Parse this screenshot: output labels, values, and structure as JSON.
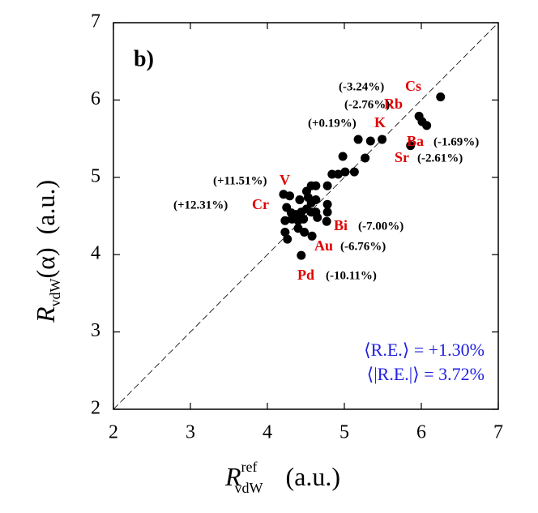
{
  "chart_data": {
    "type": "scatter",
    "panel_label": "b)",
    "x_label": {
      "symbol": "R",
      "superscript": "ref",
      "subscript": "vdW",
      "unit": "(a.u.)"
    },
    "y_label": {
      "symbol": "R",
      "subscript": "vdW",
      "argument": "(α)",
      "unit": "(a.u.)"
    },
    "xlim": [
      2,
      7
    ],
    "ylim": [
      2,
      7
    ],
    "xticks": [
      2,
      3,
      4,
      5,
      6,
      7
    ],
    "yticks": [
      2,
      3,
      4,
      5,
      6,
      7
    ],
    "color": "#000000",
    "series": [
      {
        "x": [
          6.25,
          5.97,
          6.01,
          6.07,
          5.86,
          5.49,
          5.34,
          5.18,
          5.27,
          4.98,
          5.13,
          5.01,
          4.92,
          4.84,
          4.63,
          4.57,
          4.78,
          4.21,
          4.29,
          4.42,
          4.51,
          4.53,
          4.57,
          4.63,
          4.78,
          4.25,
          4.31,
          4.37,
          4.44,
          4.51,
          4.57,
          4.63,
          4.78,
          4.23,
          4.4,
          4.47,
          4.65,
          4.77,
          4.23,
          4.4,
          4.48,
          4.58,
          4.26,
          4.44,
          4.32
        ],
        "y": [
          6.04,
          5.79,
          5.72,
          5.67,
          5.41,
          5.49,
          5.47,
          5.49,
          5.25,
          5.27,
          5.07,
          5.07,
          5.04,
          5.04,
          4.89,
          4.89,
          4.89,
          4.78,
          4.76,
          4.71,
          4.82,
          4.74,
          4.67,
          4.71,
          4.65,
          4.61,
          4.54,
          4.52,
          4.55,
          4.59,
          4.55,
          4.55,
          4.55,
          4.44,
          4.44,
          4.46,
          4.48,
          4.43,
          4.29,
          4.34,
          4.29,
          4.24,
          4.2,
          3.99,
          4.46
        ]
      }
    ],
    "annotations": [
      {
        "element": "Cs",
        "error": "(-3.24%)"
      },
      {
        "element": "Rb",
        "error": "(-2.76%)"
      },
      {
        "element": "K",
        "error": "(+0.19%)"
      },
      {
        "element": "Ba",
        "error": "(-1.69%)"
      },
      {
        "element": "Sr",
        "error": "(-2.61%)"
      },
      {
        "element": "V",
        "error": "(+11.51%)"
      },
      {
        "element": "Cr",
        "error": "(+12.31%)"
      },
      {
        "element": "Bi",
        "error": "(-7.00%)"
      },
      {
        "element": "Au",
        "error": "(-6.76%)"
      },
      {
        "element": "Pd",
        "error": "(-10.11%)"
      }
    ],
    "statistics": [
      "⟨R.E.⟩ = +1.30%",
      "⟨|R.E.|⟩ = 3.72%"
    ]
  }
}
